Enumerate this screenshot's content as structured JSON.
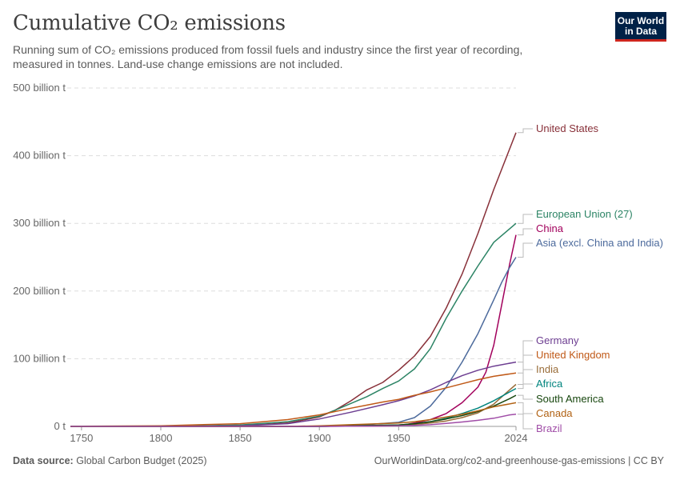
{
  "header": {
    "title": "Cumulative CO₂ emissions",
    "subtitle": "Running sum of CO₂ emissions produced from fossil fuels and industry since the first year of recording, measured in tonnes. Land-use change emissions are not included.",
    "logo_line1": "Our World",
    "logo_line2": "in Data"
  },
  "footer": {
    "source_label": "Data source:",
    "source_text": "Global Carbon Budget (2025)",
    "url": "OurWorldinData.org/co2-and-greenhouse-gas-emissions | CC BY"
  },
  "colors": {
    "logo_bg": "#002147",
    "logo_accent": "#ce261e"
  },
  "chart_data": {
    "type": "line",
    "xlim": [
      1743,
      2024
    ],
    "ylim": [
      0,
      500
    ],
    "y_unit": "billion t",
    "x_ticks": [
      "1750",
      "1800",
      "1850",
      "1900",
      "1950",
      "2024"
    ],
    "x_tick_values": [
      1750,
      1800,
      1850,
      1900,
      1950,
      2024
    ],
    "y_ticks": [
      "0 t",
      "100 billion t",
      "200 billion t",
      "300 billion t",
      "400 billion t",
      "500 billion t"
    ],
    "y_tick_values": [
      0,
      100,
      200,
      300,
      400,
      500
    ],
    "grid": "horizontal dashed",
    "legend": "right end labels",
    "series": [
      {
        "name": "United States",
        "color": "#883039",
        "x": [
          1800,
          1850,
          1880,
          1900,
          1910,
          1920,
          1930,
          1940,
          1950,
          1960,
          1970,
          1980,
          1990,
          2000,
          2010,
          2024
        ],
        "values": [
          0,
          1,
          5,
          14,
          24,
          38,
          54,
          65,
          83,
          104,
          133,
          175,
          225,
          285,
          350,
          434
        ]
      },
      {
        "name": "European Union (27)",
        "color": "#2c8465",
        "x": [
          1800,
          1850,
          1880,
          1900,
          1910,
          1920,
          1930,
          1940,
          1950,
          1960,
          1970,
          1980,
          1990,
          2000,
          2010,
          2024
        ],
        "values": [
          0,
          2,
          7,
          15,
          24,
          34,
          44,
          56,
          67,
          85,
          115,
          160,
          200,
          237,
          272,
          300
        ]
      },
      {
        "name": "China",
        "color": "#a2005c",
        "x": [
          1900,
          1950,
          1960,
          1970,
          1980,
          1990,
          2000,
          2005,
          2010,
          2015,
          2020,
          2024
        ],
        "values": [
          0,
          1,
          5,
          10,
          19,
          35,
          58,
          80,
          120,
          180,
          240,
          283
        ]
      },
      {
        "name": "Asia (excl. China and India)",
        "color": "#4c6a9c",
        "x": [
          1900,
          1920,
          1950,
          1960,
          1970,
          1980,
          1990,
          2000,
          2010,
          2015,
          2020,
          2024
        ],
        "values": [
          0,
          1,
          6,
          13,
          30,
          58,
          95,
          137,
          187,
          213,
          235,
          250
        ]
      },
      {
        "name": "Germany",
        "color": "#6d3e91",
        "x": [
          1800,
          1850,
          1880,
          1900,
          1920,
          1940,
          1950,
          1960,
          1970,
          1980,
          1990,
          2000,
          2010,
          2024
        ],
        "values": [
          0,
          1,
          4,
          11,
          21,
          32,
          38,
          45,
          54,
          65,
          75,
          83,
          89,
          95
        ]
      },
      {
        "name": "United Kingdom",
        "color": "#c05917",
        "x": [
          1750,
          1800,
          1850,
          1880,
          1900,
          1920,
          1940,
          1950,
          1960,
          1970,
          1980,
          1990,
          2000,
          2010,
          2024
        ],
        "values": [
          0.2,
          1,
          4,
          10,
          17,
          27,
          36,
          40,
          46,
          51,
          57,
          63,
          69,
          74,
          79
        ]
      },
      {
        "name": "India",
        "color": "#996d39",
        "x": [
          1900,
          1950,
          1960,
          1970,
          1980,
          1990,
          2000,
          2010,
          2020,
          2024
        ],
        "values": [
          0,
          2,
          3,
          5,
          8,
          13,
          20,
          33,
          54,
          62
        ]
      },
      {
        "name": "Africa",
        "color": "#00847e",
        "x": [
          1900,
          1950,
          1960,
          1970,
          1980,
          1990,
          2000,
          2010,
          2020,
          2024
        ],
        "values": [
          0,
          2,
          4,
          7,
          12,
          19,
          27,
          38,
          51,
          56
        ]
      },
      {
        "name": "South America",
        "color": "#18470f",
        "x": [
          1900,
          1950,
          1960,
          1970,
          1980,
          1990,
          2000,
          2010,
          2020,
          2024
        ],
        "values": [
          0,
          2,
          4,
          7,
          11,
          16,
          22,
          30,
          41,
          46
        ]
      },
      {
        "name": "Canada",
        "color": "#b16214",
        "x": [
          1880,
          1900,
          1950,
          1960,
          1970,
          1980,
          1990,
          2000,
          2010,
          2024
        ],
        "values": [
          0,
          1,
          5,
          7,
          10,
          14,
          18,
          23,
          29,
          35
        ]
      },
      {
        "name": "Brazil",
        "color": "#a04da7",
        "x": [
          1900,
          1950,
          1960,
          1970,
          1980,
          1990,
          2000,
          2010,
          2020,
          2024
        ],
        "values": [
          0,
          1,
          1.5,
          2.5,
          4.5,
          6.5,
          9,
          12,
          17,
          18
        ]
      }
    ]
  }
}
